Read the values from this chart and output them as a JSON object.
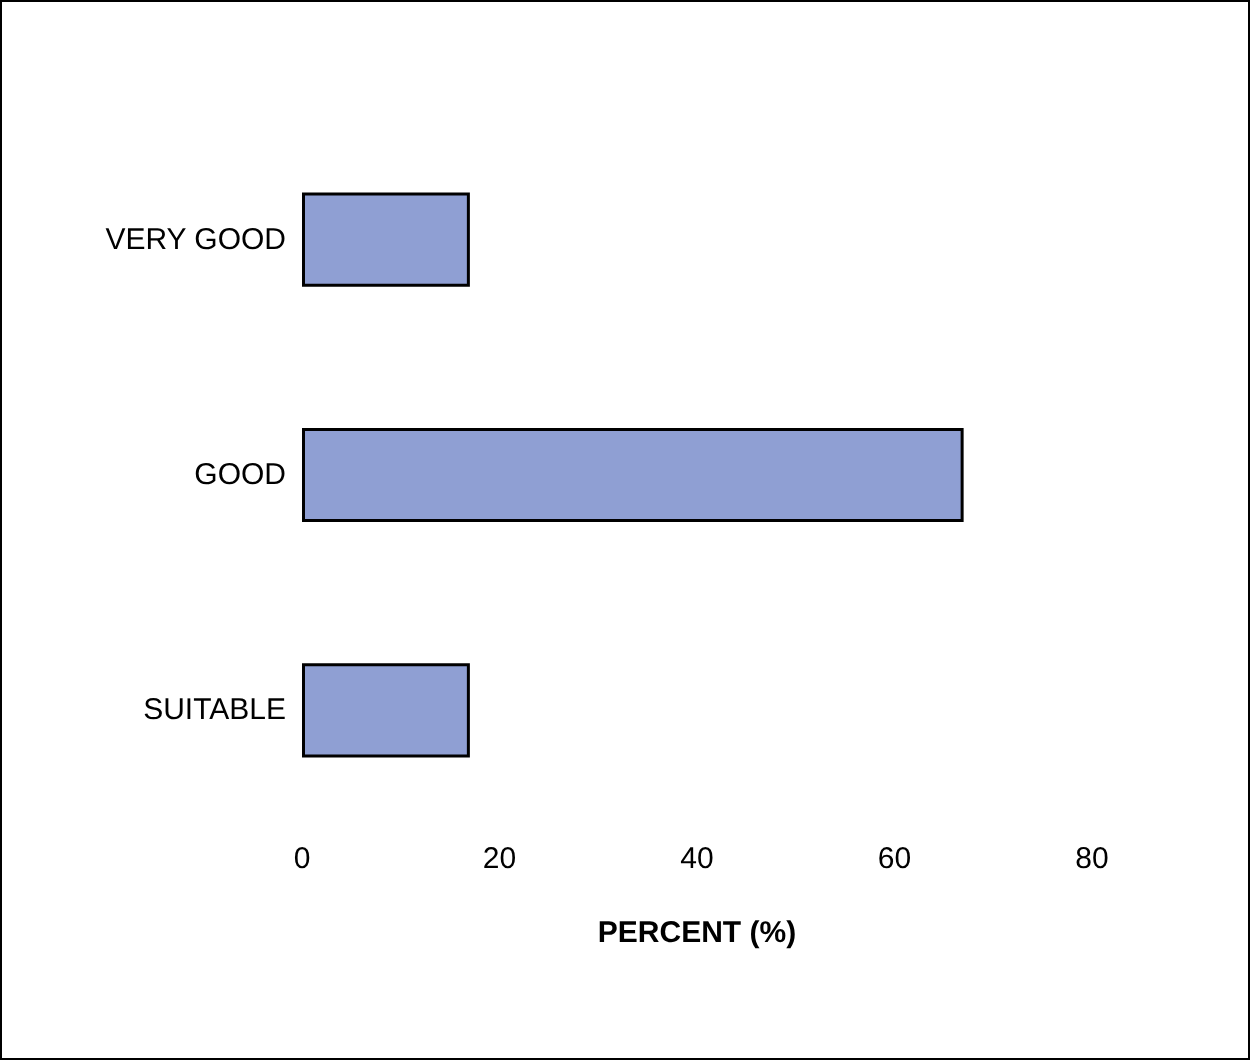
{
  "chart_data": {
    "type": "bar",
    "orientation": "horizontal",
    "xlabel": "PERCENT (%)",
    "categories": [
      "VERY GOOD",
      "GOOD",
      "SUITABLE"
    ],
    "values": [
      17,
      67,
      17
    ],
    "color": "#8f9fd3",
    "xlim": [
      0,
      80
    ],
    "xticks": [
      0,
      20,
      40,
      60,
      80
    ],
    "grid": false
  }
}
